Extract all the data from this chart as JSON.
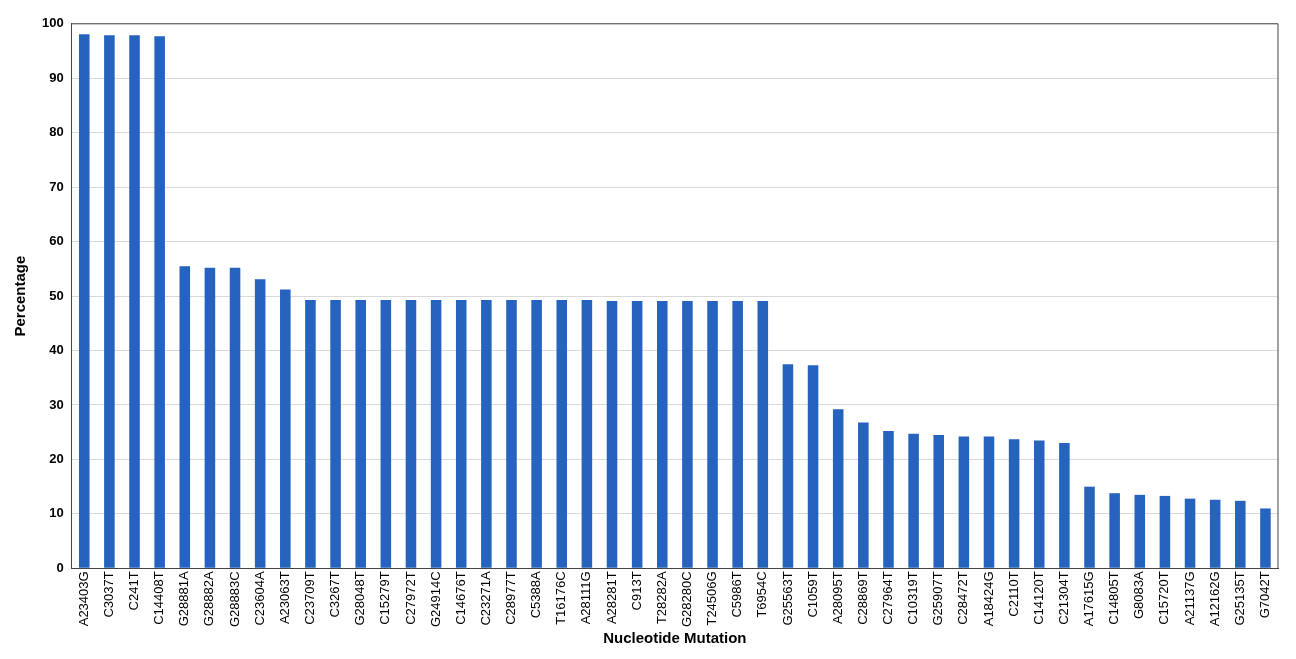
{
  "chart_data": {
    "type": "bar",
    "xlabel": "Nucleotide Mutation",
    "ylabel": "Percentage",
    "categories": [
      "A23403G",
      "C3037T",
      "C241T",
      "C14408T",
      "G28881A",
      "G28882A",
      "G28883C",
      "C23604A",
      "A23063T",
      "C23709T",
      "C3267T",
      "G28048T",
      "C15279T",
      "C27972T",
      "G24914C",
      "C14676T",
      "C23271A",
      "C28977T",
      "C5388A",
      "T16176C",
      "A28111G",
      "A28281T",
      "C913T",
      "T28282A",
      "G28280C",
      "T24506G",
      "C5986T",
      "T6954C",
      "G25563T",
      "C1059T",
      "A28095T",
      "C28869T",
      "C27964T",
      "C10319T",
      "G25907T",
      "C28472T",
      "A18424G",
      "C2110T",
      "C14120T",
      "C21304T",
      "A17615G",
      "C14805T",
      "G8083A",
      "C15720T",
      "A21137G",
      "A12162G",
      "G25135T",
      "G7042T"
    ],
    "values": [
      98.1,
      97.9,
      97.9,
      97.7,
      55.5,
      55.2,
      55.2,
      53.1,
      51.2,
      49.3,
      49.3,
      49.3,
      49.3,
      49.3,
      49.3,
      49.3,
      49.3,
      49.3,
      49.3,
      49.3,
      49.3,
      49.1,
      49.1,
      49.1,
      49.1,
      49.1,
      49.1,
      49.1,
      37.5,
      37.3,
      29.2,
      26.8,
      25.2,
      24.7,
      24.5,
      24.2,
      24.2,
      23.7,
      23.5,
      23.0,
      15.0,
      13.8,
      13.5,
      13.3,
      12.8,
      12.6,
      12.4,
      11.0
    ],
    "color": "#2563be",
    "ylim": [
      0,
      100
    ],
    "yticks": [
      0,
      10,
      20,
      30,
      40,
      50,
      60,
      70,
      80,
      90,
      100
    ],
    "grid": "y",
    "legend": false
  }
}
